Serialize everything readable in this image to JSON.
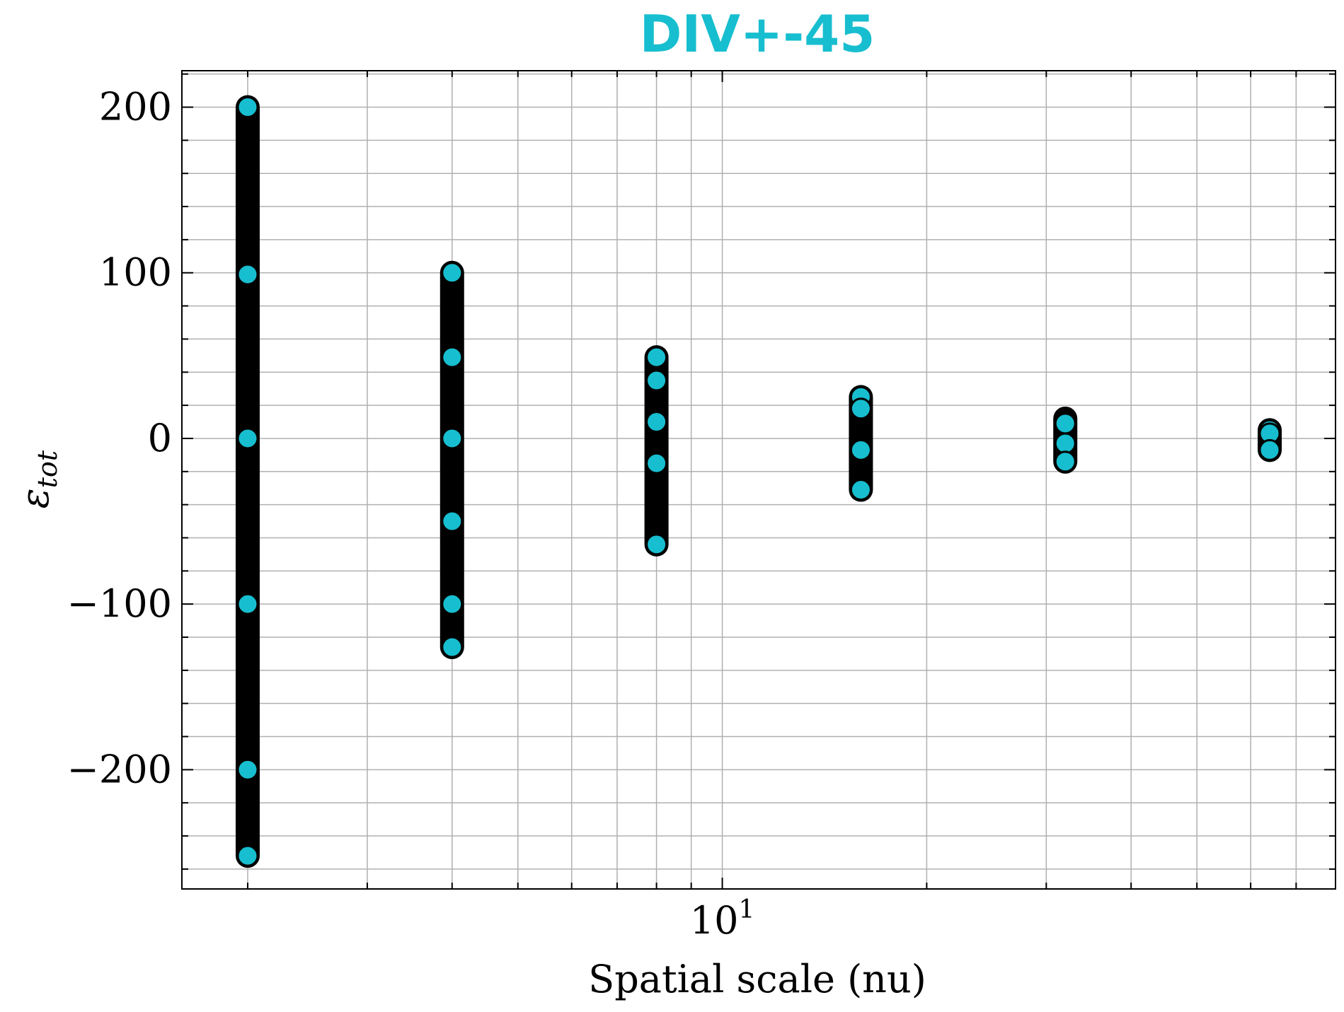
{
  "chart_data": {
    "type": "scatter",
    "title": "DIV+-45",
    "title_color": "#17becf",
    "xlabel": "Spatial scale (nu)",
    "ylabel": "ε",
    "ylabel_subscript": "tot",
    "xscale": "log",
    "xlim": [
      1.6,
      80
    ],
    "ylim": [
      -272,
      222
    ],
    "grid": true,
    "marker_face": "#17becf",
    "marker_edge": "#000000",
    "x_ticks": [
      {
        "value": 10,
        "base": "10",
        "exp": "1"
      }
    ],
    "y_ticks": [
      {
        "value": 200,
        "label": "200"
      },
      {
        "value": 100,
        "label": "100"
      },
      {
        "value": 0,
        "label": "0"
      },
      {
        "value": -100,
        "label": "−100"
      },
      {
        "value": -200,
        "label": "−200"
      }
    ],
    "columns": [
      {
        "x": 2,
        "min": -252,
        "max": 200,
        "highlights": [
          200,
          99,
          0,
          -100,
          -200,
          -252
        ]
      },
      {
        "x": 4,
        "min": -126,
        "max": 100,
        "highlights": [
          100,
          49,
          0,
          -50,
          -100,
          -126
        ]
      },
      {
        "x": 8,
        "min": -64,
        "max": 49,
        "highlights": [
          49,
          35,
          10,
          -15,
          -64
        ]
      },
      {
        "x": 16,
        "min": -31,
        "max": 25,
        "highlights": [
          25,
          18,
          -7,
          -31
        ]
      },
      {
        "x": 32,
        "min": -14,
        "max": 12,
        "highlights": [
          9,
          -3,
          -14
        ]
      },
      {
        "x": 64,
        "min": -7,
        "max": 5,
        "highlights": [
          5,
          3,
          -7
        ]
      }
    ]
  }
}
